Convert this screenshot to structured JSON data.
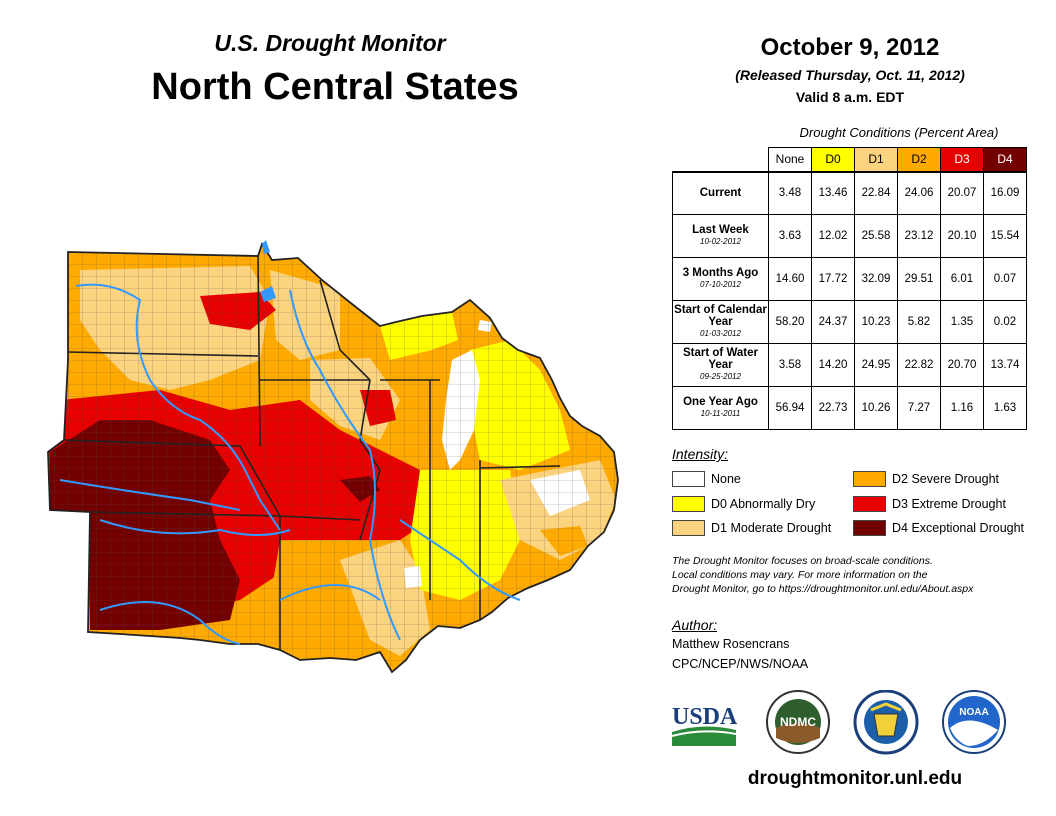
{
  "header": {
    "subtitle": "U.S. Drought Monitor",
    "title": "North Central States",
    "date": "October 9, 2012",
    "released": "(Released Thursday, Oct. 11, 2012)",
    "valid": "Valid 8 a.m. EDT"
  },
  "conditions": {
    "caption": "Drought Conditions (Percent Area)",
    "columns": [
      {
        "label": "None",
        "color": "#ffffff",
        "text": "#000000"
      },
      {
        "label": "D0",
        "color": "#ffff00",
        "text": "#000000"
      },
      {
        "label": "D1",
        "color": "#fcd37f",
        "text": "#000000"
      },
      {
        "label": "D2",
        "color": "#ffaa00",
        "text": "#000000"
      },
      {
        "label": "D3",
        "color": "#e60000",
        "text": "#ffffff"
      },
      {
        "label": "D4",
        "color": "#730000",
        "text": "#ffffff"
      }
    ],
    "rows": [
      {
        "label": "Current",
        "date": "",
        "values": [
          "3.48",
          "13.46",
          "22.84",
          "24.06",
          "20.07",
          "16.09"
        ]
      },
      {
        "label": "Last Week",
        "date": "10-02-2012",
        "values": [
          "3.63",
          "12.02",
          "25.58",
          "23.12",
          "20.10",
          "15.54"
        ]
      },
      {
        "label": "3 Months Ago",
        "date": "07-10-2012",
        "values": [
          "14.60",
          "17.72",
          "32.09",
          "29.51",
          "6.01",
          "0.07"
        ]
      },
      {
        "label": "Start of Calendar Year",
        "date": "01-03-2012",
        "values": [
          "58.20",
          "24.37",
          "10.23",
          "5.82",
          "1.35",
          "0.02"
        ]
      },
      {
        "label": "Start of Water Year",
        "date": "09-25-2012",
        "values": [
          "3.58",
          "14.20",
          "24.95",
          "22.82",
          "20.70",
          "13.74"
        ]
      },
      {
        "label": "One Year Ago",
        "date": "10-11-2011",
        "values": [
          "56.94",
          "22.73",
          "10.26",
          "7.27",
          "1.16",
          "1.63"
        ]
      }
    ]
  },
  "legend": {
    "title": "Intensity:",
    "items": [
      {
        "label": "None",
        "color": "#ffffff"
      },
      {
        "label": "D0 Abnormally Dry",
        "color": "#ffff00"
      },
      {
        "label": "D1 Moderate Drought",
        "color": "#fcd37f"
      },
      {
        "label": "D2 Severe Drought",
        "color": "#ffaa00"
      },
      {
        "label": "D3 Extreme Drought",
        "color": "#e60000"
      },
      {
        "label": "D4 Exceptional Drought",
        "color": "#730000"
      }
    ]
  },
  "note": {
    "line1": "The Drought Monitor focuses on broad-scale conditions.",
    "line2": "Local conditions may vary. For more information on the",
    "line3": "Drought Monitor, go to https://droughtmonitor.unl.edu/About.aspx"
  },
  "author": {
    "title": "Author:",
    "name": "Matthew Rosencrans",
    "org": "CPC/NCEP/NWS/NOAA"
  },
  "logos": {
    "usda": "USDA",
    "ndmc": "NDMC",
    "noaa": "NOAA"
  },
  "footer": {
    "url": "droughtmonitor.unl.edu"
  },
  "colors": {
    "water": "#3399ff",
    "border": "#222222",
    "county": "#555555"
  }
}
